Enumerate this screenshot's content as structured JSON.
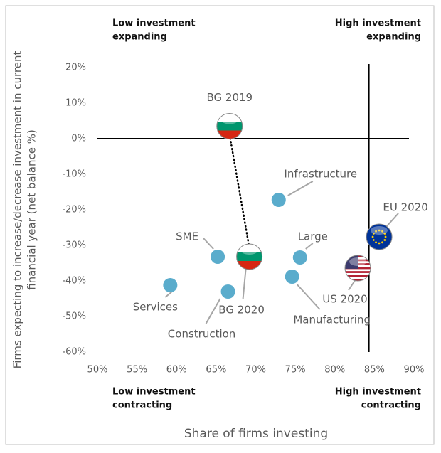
{
  "chart_data": {
    "type": "scatter",
    "x_label": "Share of firms investing",
    "y_label": [
      "Firms expecting to increase/decrease investment in current",
      "financial year  (net balance %)"
    ],
    "quadrant_labels": [
      [
        "Low investment",
        "expanding"
      ],
      [
        "High investment",
        "expanding"
      ],
      [
        "Low investment",
        "contracting"
      ],
      [
        "High investment",
        "contracting"
      ]
    ],
    "xlim": [
      50,
      90
    ],
    "ylim": [
      20,
      -60
    ],
    "xticks": [
      {
        "value": 50,
        "label": "50%"
      },
      {
        "value": 55,
        "label": "55%"
      },
      {
        "value": 60,
        "label": "60%"
      },
      {
        "value": 65,
        "label": "65%"
      },
      {
        "value": 70,
        "label": "70%"
      },
      {
        "value": 75,
        "label": "75%"
      },
      {
        "value": 80,
        "label": "80%"
      },
      {
        "value": 85,
        "label": "85%"
      },
      {
        "value": 90,
        "label": "90%"
      }
    ],
    "yticks": [
      {
        "value": 20,
        "label": "20%"
      },
      {
        "value": 10,
        "label": "10%"
      },
      {
        "value": 0,
        "label": "0%"
      },
      {
        "value": -10,
        "label": "-10%"
      },
      {
        "value": -20,
        "label": "-20%"
      },
      {
        "value": -30,
        "label": "-30%"
      },
      {
        "value": -40,
        "label": "-40%"
      },
      {
        "value": -50,
        "label": "-50%"
      },
      {
        "value": -60,
        "label": "-60%"
      }
    ],
    "reference_x": 84.3,
    "reference_y": 0,
    "color": "#5aaccc",
    "points": [
      {
        "name": "BG 2019",
        "x": 66.7,
        "y": 3.5,
        "colors": [
          "#ffffff",
          "#00966e",
          "#d62612"
        ]
      },
      {
        "name": "BG 2020",
        "x": 69.2,
        "y": -33.2,
        "colors": [
          "#ffffff",
          "#00966e",
          "#d62612"
        ]
      },
      {
        "name": "Infrastructure",
        "x": 72.9,
        "y": -17.2
      },
      {
        "name": "SME",
        "x": 65.2,
        "y": -33.2
      },
      {
        "name": "Large",
        "x": 75.6,
        "y": -33.4
      },
      {
        "name": "Manufacturing",
        "x": 74.6,
        "y": -38.8
      },
      {
        "name": "Services",
        "x": 59.2,
        "y": -41.2
      },
      {
        "name": "Construction",
        "x": 66.5,
        "y": -43
      },
      {
        "name": "EU 2020",
        "x": 85.6,
        "y": -27.6,
        "colors": [
          "#003399",
          "#ffcc00"
        ]
      },
      {
        "name": "US 2020",
        "x": 82.9,
        "y": -36.4,
        "colors": [
          "#b22234",
          "#ffffff",
          "#3c3b6e"
        ]
      }
    ]
  }
}
